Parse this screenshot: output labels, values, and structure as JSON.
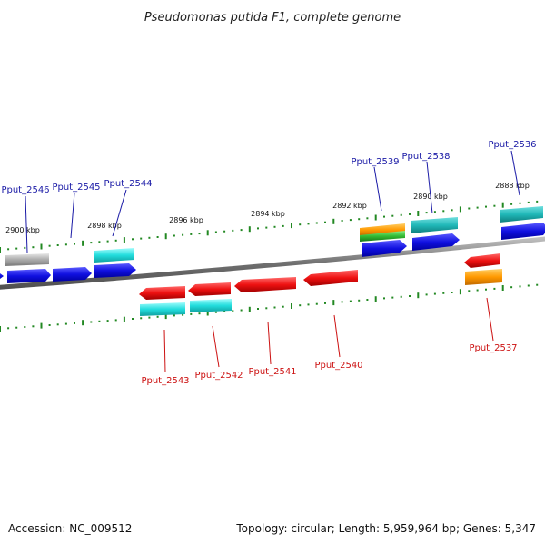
{
  "title": "Pseudomonas putida F1, complete genome",
  "footer": {
    "accession": "Accession: NC_009512",
    "topology": "Topology: circular; Length: 5,959,964 bp; Genes: 5,347"
  },
  "colors": {
    "forward_label": "#1a1aa6",
    "reverse_label": "#cc1111",
    "blue": "#1010e0",
    "red": "#ee1111",
    "cyan": "#22dddd",
    "teal": "#20b8b8",
    "orange": "#ff9900",
    "green": "#33bb33",
    "gray": "#aaaaaa",
    "tick": "#228822",
    "backbone": "#808080"
  },
  "kbp_labels": [
    "2900 kbp",
    "2898 kbp",
    "2896 kbp",
    "2894 kbp",
    "2892 kbp",
    "2890 kbp",
    "2888 kbp"
  ],
  "forward_genes": [
    "Pput_2546",
    "Pput_2545",
    "Pput_2544",
    "Pput_2539",
    "Pput_2538",
    "Pput_2536"
  ],
  "reverse_genes": [
    "Pput_2543",
    "Pput_2542",
    "Pput_2541",
    "Pput_2540",
    "Pput_2537"
  ]
}
